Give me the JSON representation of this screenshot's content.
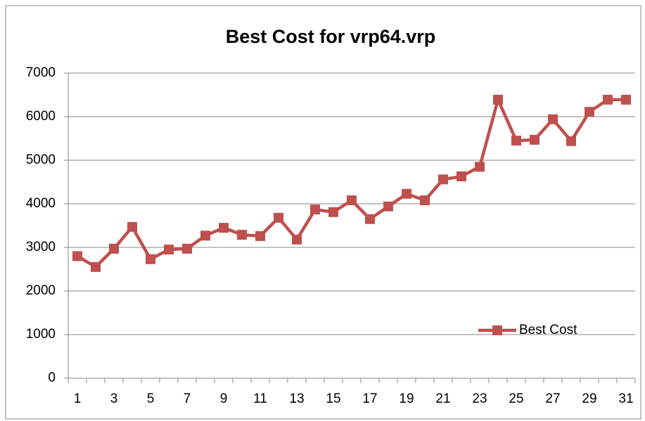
{
  "chart_data": {
    "type": "line",
    "title": "Best Cost for vrp64.vrp",
    "categories": [
      "1",
      null,
      "3",
      null,
      "5",
      null,
      "7",
      null,
      "9",
      null,
      "11",
      null,
      "13",
      null,
      "15",
      null,
      "17",
      null,
      "19",
      null,
      "21",
      null,
      "23",
      null,
      "25",
      null,
      "27",
      null,
      "29",
      null,
      "31"
    ],
    "series": [
      {
        "name": "Best Cost",
        "color": "#c0504d",
        "values": [
          2800,
          2550,
          2970,
          3470,
          2730,
          2950,
          2970,
          3270,
          3450,
          3290,
          3260,
          3680,
          3180,
          3870,
          3810,
          4080,
          3650,
          3940,
          4230,
          4080,
          4560,
          4630,
          4850,
          6390,
          5450,
          5470,
          5940,
          5440,
          6110,
          6390,
          6390
        ]
      }
    ],
    "ylim": [
      0,
      7000
    ],
    "yticks": [
      0,
      1000,
      2000,
      3000,
      4000,
      5000,
      6000,
      7000
    ],
    "grid": true,
    "legend": "bottom-right"
  }
}
